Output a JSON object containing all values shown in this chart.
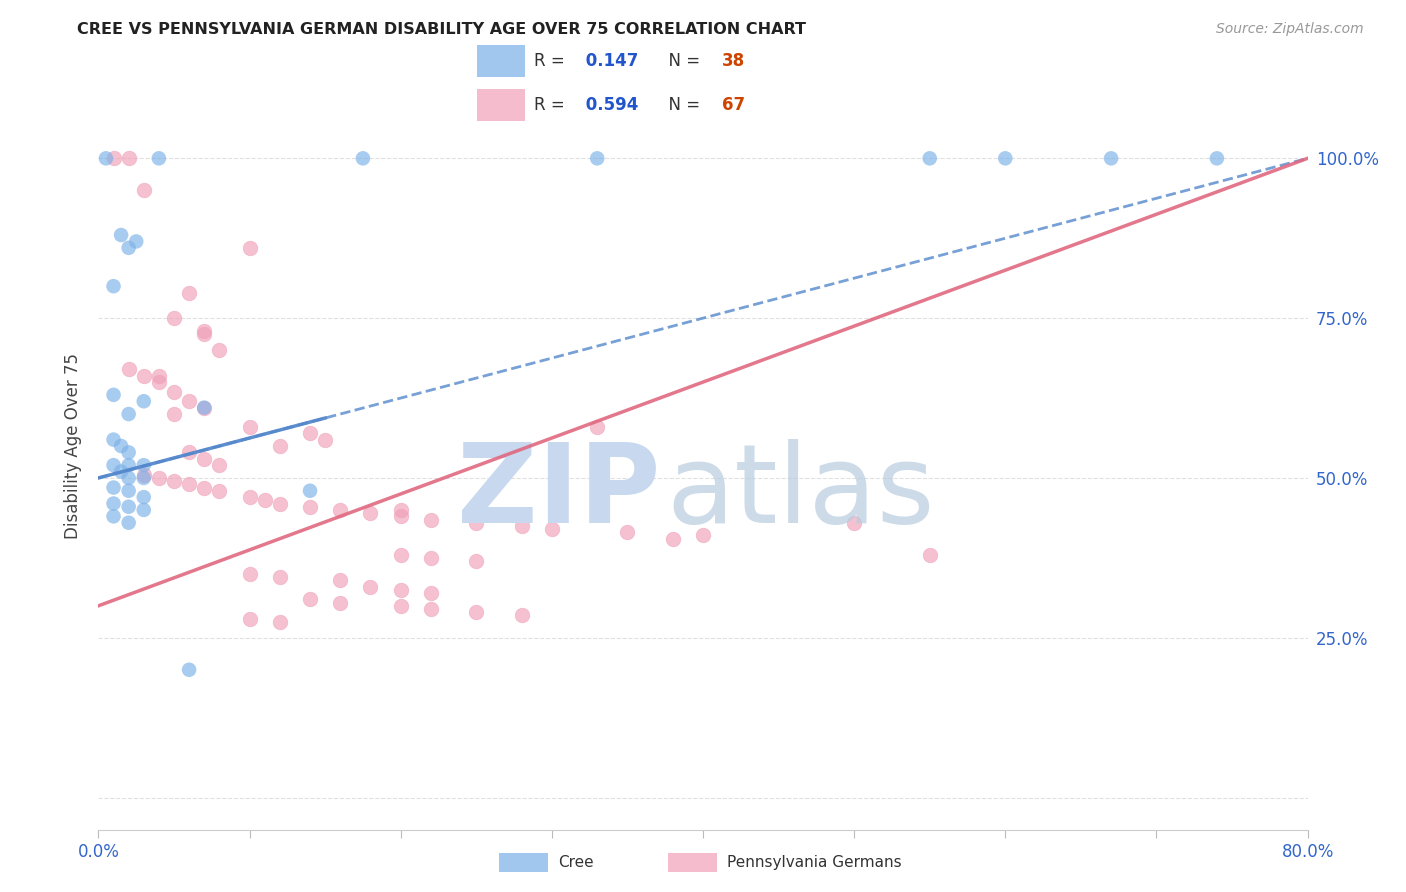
{
  "title": "CREE VS PENNSYLVANIA GERMAN DISABILITY AGE OVER 75 CORRELATION CHART",
  "source": "Source: ZipAtlas.com",
  "ylabel": "Disability Age Over 75",
  "xlim": [
    0.0,
    80.0
  ],
  "ylim": [
    -5.0,
    115.0
  ],
  "cree_color": "#7ab0e8",
  "pg_color": "#f0a0b8",
  "cree_line_color": "#5588cc",
  "pg_line_color": "#e06880",
  "grid_color": "#dddddd",
  "watermark_zip_color": "#c8d8ee",
  "watermark_atlas_color": "#b8cce0",
  "bg_color": "#ffffff",
  "cree_points": [
    [
      0.5,
      100.0
    ],
    [
      4.0,
      100.0
    ],
    [
      17.5,
      100.0
    ],
    [
      33.0,
      100.0
    ],
    [
      55.0,
      100.0
    ],
    [
      60.0,
      100.0
    ],
    [
      67.0,
      100.0
    ],
    [
      74.0,
      100.0
    ],
    [
      1.5,
      88.0
    ],
    [
      2.0,
      86.0
    ],
    [
      2.5,
      87.0
    ],
    [
      1.0,
      80.0
    ],
    [
      1.0,
      63.0
    ],
    [
      2.0,
      60.0
    ],
    [
      3.0,
      62.0
    ],
    [
      1.0,
      56.0
    ],
    [
      1.5,
      55.0
    ],
    [
      2.0,
      54.0
    ],
    [
      1.0,
      52.0
    ],
    [
      2.0,
      52.0
    ],
    [
      3.0,
      52.0
    ],
    [
      1.5,
      51.0
    ],
    [
      2.0,
      50.0
    ],
    [
      3.0,
      50.0
    ],
    [
      1.0,
      48.5
    ],
    [
      2.0,
      48.0
    ],
    [
      3.0,
      47.0
    ],
    [
      1.0,
      46.0
    ],
    [
      2.0,
      45.5
    ],
    [
      3.0,
      45.0
    ],
    [
      14.0,
      48.0
    ],
    [
      7.0,
      61.0
    ],
    [
      1.0,
      44.0
    ],
    [
      2.0,
      43.0
    ],
    [
      6.0,
      20.0
    ]
  ],
  "pg_points": [
    [
      1.0,
      100.0
    ],
    [
      2.0,
      100.0
    ],
    [
      3.0,
      95.0
    ],
    [
      10.0,
      86.0
    ],
    [
      6.0,
      79.0
    ],
    [
      7.0,
      73.0
    ],
    [
      8.0,
      70.0
    ],
    [
      2.0,
      67.0
    ],
    [
      3.0,
      66.0
    ],
    [
      4.0,
      65.0
    ],
    [
      5.0,
      63.5
    ],
    [
      6.0,
      62.0
    ],
    [
      7.0,
      61.0
    ],
    [
      5.0,
      60.0
    ],
    [
      10.0,
      58.0
    ],
    [
      14.0,
      57.0
    ],
    [
      15.0,
      56.0
    ],
    [
      12.0,
      55.0
    ],
    [
      6.0,
      54.0
    ],
    [
      7.0,
      53.0
    ],
    [
      8.0,
      52.0
    ],
    [
      3.0,
      50.5
    ],
    [
      4.0,
      50.0
    ],
    [
      5.0,
      49.5
    ],
    [
      6.0,
      49.0
    ],
    [
      7.0,
      48.5
    ],
    [
      8.0,
      48.0
    ],
    [
      10.0,
      47.0
    ],
    [
      11.0,
      46.5
    ],
    [
      12.0,
      46.0
    ],
    [
      14.0,
      45.5
    ],
    [
      16.0,
      45.0
    ],
    [
      18.0,
      44.5
    ],
    [
      20.0,
      44.0
    ],
    [
      22.0,
      43.5
    ],
    [
      25.0,
      43.0
    ],
    [
      28.0,
      42.5
    ],
    [
      30.0,
      42.0
    ],
    [
      35.0,
      41.5
    ],
    [
      40.0,
      41.0
    ],
    [
      38.0,
      40.5
    ],
    [
      20.0,
      38.0
    ],
    [
      22.0,
      37.5
    ],
    [
      25.0,
      37.0
    ],
    [
      10.0,
      35.0
    ],
    [
      12.0,
      34.5
    ],
    [
      16.0,
      34.0
    ],
    [
      18.0,
      33.0
    ],
    [
      20.0,
      32.5
    ],
    [
      22.0,
      32.0
    ],
    [
      14.0,
      31.0
    ],
    [
      16.0,
      30.5
    ],
    [
      20.0,
      30.0
    ],
    [
      22.0,
      29.5
    ],
    [
      25.0,
      29.0
    ],
    [
      28.0,
      28.5
    ],
    [
      10.0,
      28.0
    ],
    [
      12.0,
      27.5
    ],
    [
      4.0,
      66.0
    ],
    [
      33.0,
      58.0
    ],
    [
      20.0,
      45.0
    ],
    [
      50.0,
      43.0
    ],
    [
      55.0,
      38.0
    ],
    [
      5.0,
      75.0
    ],
    [
      7.0,
      72.5
    ]
  ]
}
